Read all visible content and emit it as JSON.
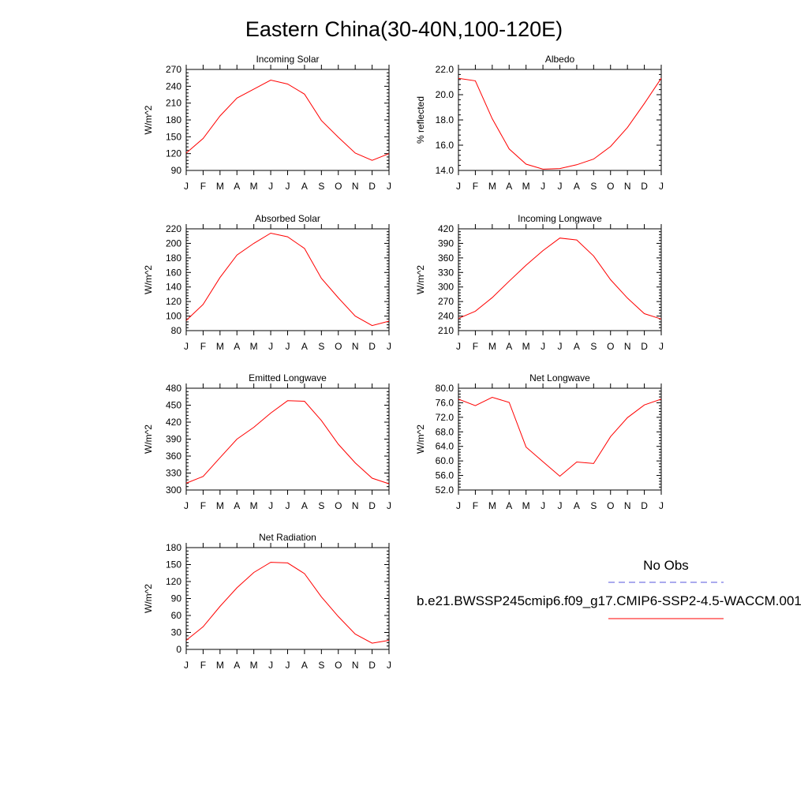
{
  "figure": {
    "title": "Eastern China(30-40N,100-120E)"
  },
  "legend": {
    "obs_label": "No Obs",
    "obs_color": "#5555dd",
    "model_label": "b.e21.BWSSP245cmip6.f09_g17.CMIP6-SSP2-4.5-WACCM.001",
    "model_color": "#ff0000"
  },
  "chart_data": [
    {
      "type": "line",
      "title": "Incoming Solar",
      "ylabel": "W/m^2",
      "xlabel": "",
      "categories": [
        "J",
        "F",
        "M",
        "A",
        "M",
        "J",
        "J",
        "A",
        "S",
        "O",
        "N",
        "D",
        "J"
      ],
      "ylim": [
        90,
        270
      ],
      "yticks": [
        "90",
        "120",
        "150",
        "180",
        "210",
        "240",
        "270"
      ],
      "series": [
        {
          "values": [
            121,
            147,
            187,
            219,
            235,
            251,
            244,
            226,
            179,
            149,
            121,
            108,
            120
          ]
        }
      ]
    },
    {
      "type": "line",
      "title": "Albedo",
      "ylabel": "% reflected",
      "xlabel": "",
      "categories": [
        "J",
        "F",
        "M",
        "A",
        "M",
        "J",
        "J",
        "A",
        "S",
        "O",
        "N",
        "D",
        "J"
      ],
      "ylim": [
        14.0,
        22.0
      ],
      "yticks": [
        "14.0",
        "16.0",
        "18.0",
        "20.0",
        "22.0"
      ],
      "series": [
        {
          "values": [
            21.3,
            21.1,
            18.1,
            15.7,
            14.5,
            14.1,
            14.15,
            14.45,
            14.9,
            15.9,
            17.4,
            19.3,
            21.3
          ]
        }
      ]
    },
    {
      "type": "line",
      "title": "Absorbed Solar",
      "ylabel": "W/m^2",
      "xlabel": "",
      "categories": [
        "J",
        "F",
        "M",
        "A",
        "M",
        "J",
        "J",
        "A",
        "S",
        "O",
        "N",
        "D",
        "J"
      ],
      "ylim": [
        80,
        220
      ],
      "yticks": [
        "80",
        "100",
        "120",
        "140",
        "160",
        "180",
        "200",
        "220"
      ],
      "series": [
        {
          "values": [
            94,
            116,
            153,
            184,
            200,
            214,
            209,
            193,
            152,
            125,
            100,
            87,
            93
          ]
        }
      ]
    },
    {
      "type": "line",
      "title": "Incoming Longwave",
      "ylabel": "W/m^2",
      "xlabel": "",
      "categories": [
        "J",
        "F",
        "M",
        "A",
        "M",
        "J",
        "J",
        "A",
        "S",
        "O",
        "N",
        "D",
        "J"
      ],
      "ylim": [
        210,
        420
      ],
      "yticks": [
        "210",
        "240",
        "270",
        "300",
        "330",
        "360",
        "390",
        "420"
      ],
      "series": [
        {
          "values": [
            235,
            250,
            278,
            312,
            345,
            375,
            401,
            397,
            364,
            315,
            277,
            245,
            234
          ]
        }
      ]
    },
    {
      "type": "line",
      "title": "Emitted Longwave",
      "ylabel": "W/m^2",
      "xlabel": "",
      "categories": [
        "J",
        "F",
        "M",
        "A",
        "M",
        "J",
        "J",
        "A",
        "S",
        "O",
        "N",
        "D",
        "J"
      ],
      "ylim": [
        300,
        480
      ],
      "yticks": [
        "300",
        "330",
        "360",
        "390",
        "420",
        "450",
        "480"
      ],
      "series": [
        {
          "values": [
            312,
            324,
            357,
            390,
            411,
            436,
            458,
            457,
            423,
            381,
            348,
            321,
            311
          ]
        }
      ]
    },
    {
      "type": "line",
      "title": "Net Longwave",
      "ylabel": "W/m^2",
      "xlabel": "",
      "categories": [
        "J",
        "F",
        "M",
        "A",
        "M",
        "J",
        "J",
        "A",
        "S",
        "O",
        "N",
        "D",
        "J"
      ],
      "ylim": [
        52.0,
        80.0
      ],
      "yticks": [
        "52.0",
        "56.0",
        "60.0",
        "64.0",
        "68.0",
        "72.0",
        "76.0",
        "80.0"
      ],
      "series": [
        {
          "values": [
            77.0,
            75.2,
            77.5,
            76.1,
            63.8,
            59.8,
            55.8,
            59.7,
            59.3,
            66.7,
            71.9,
            75.4,
            77.0
          ]
        }
      ]
    },
    {
      "type": "line",
      "title": "Net Radiation",
      "ylabel": "W/m^2",
      "xlabel": "",
      "categories": [
        "J",
        "F",
        "M",
        "A",
        "M",
        "J",
        "J",
        "A",
        "S",
        "O",
        "N",
        "D",
        "J"
      ],
      "ylim": [
        0,
        180
      ],
      "yticks": [
        "0",
        "30",
        "60",
        "90",
        "120",
        "150",
        "180"
      ],
      "series": [
        {
          "values": [
            16,
            40,
            76,
            109,
            136,
            154,
            153,
            134,
            93,
            58,
            27,
            11,
            16
          ]
        }
      ]
    }
  ]
}
